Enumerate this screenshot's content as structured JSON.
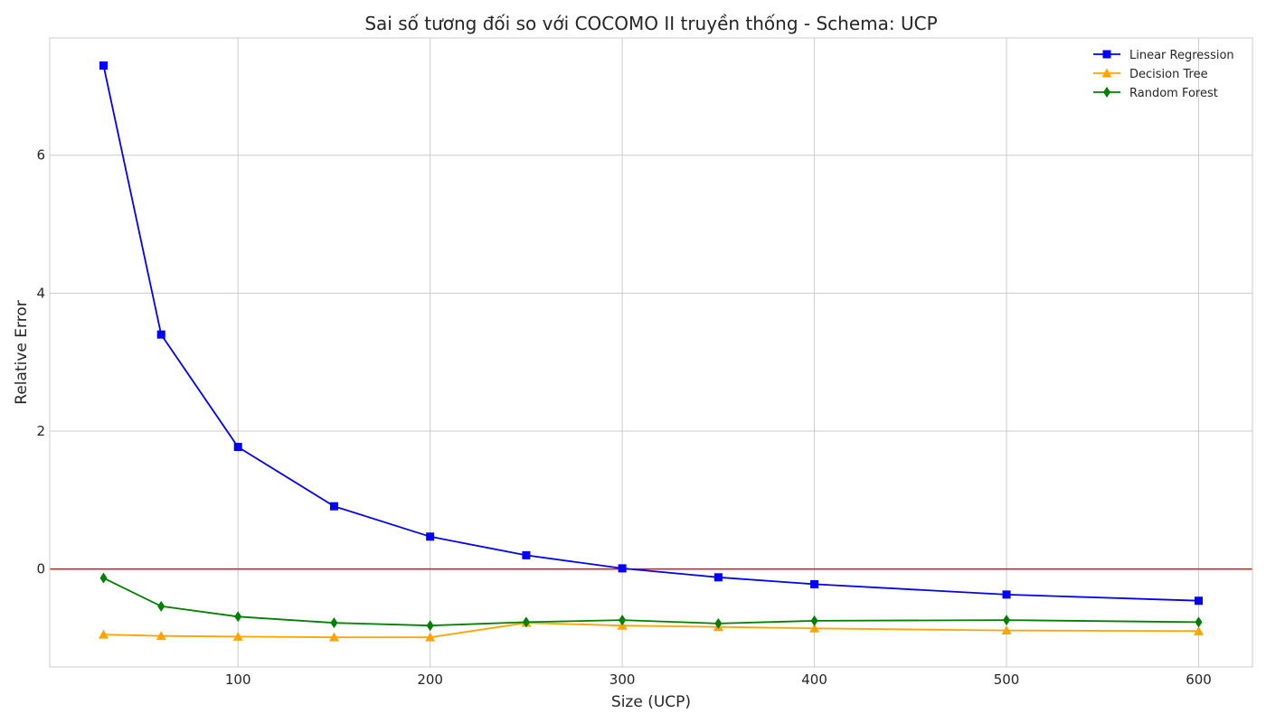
{
  "chart_data": {
    "type": "line",
    "title": "Sai số tương đối so với COCOMO II truyền thống - Schema: UCP",
    "xlabel": "Size (UCP)",
    "ylabel": "Relative Error",
    "x": [
      30,
      60,
      100,
      150,
      200,
      250,
      300,
      350,
      400,
      500,
      600
    ],
    "xlim": [
      2,
      628
    ],
    "ylim": [
      -1.42,
      7.7
    ],
    "xticks": [
      100,
      200,
      300,
      400,
      500,
      600
    ],
    "yticks": [
      0,
      2,
      4,
      6
    ],
    "grid": true,
    "legend_position": "top-right",
    "reference_line": {
      "y": 0,
      "color": "#ff0000"
    },
    "series": [
      {
        "name": "Linear Regression",
        "color": "#0000ff",
        "marker": "square",
        "values": [
          7.3,
          3.4,
          1.77,
          0.91,
          0.47,
          0.2,
          0.01,
          -0.12,
          -0.22,
          -0.37,
          -0.46
        ]
      },
      {
        "name": "Decision Tree",
        "color": "#ffa500",
        "marker": "triangle",
        "values": [
          -0.95,
          -0.97,
          -0.98,
          -0.99,
          -0.99,
          -0.78,
          -0.82,
          -0.84,
          -0.86,
          -0.89,
          -0.9
        ]
      },
      {
        "name": "Random Forest",
        "color": "#008000",
        "marker": "diamond",
        "values": [
          -0.13,
          -0.54,
          -0.69,
          -0.78,
          -0.82,
          -0.77,
          -0.74,
          -0.79,
          -0.75,
          -0.74,
          -0.77
        ]
      }
    ]
  }
}
